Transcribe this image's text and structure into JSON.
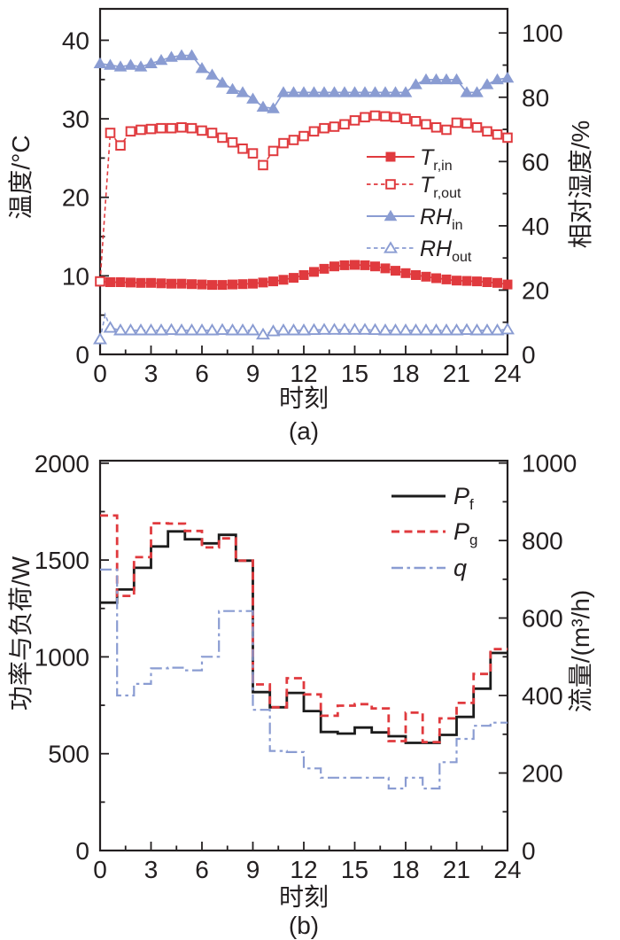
{
  "figure": {
    "background": "#ffffff",
    "ink_color": "#231f20",
    "red": "#e03a3e",
    "blue": "#8a9cd2",
    "black_series": "#1b1b1b"
  },
  "chart_data": [
    {
      "id": "a",
      "caption": "(a)",
      "type": "line",
      "x_axis": {
        "label": "时刻",
        "min": 0,
        "max": 24,
        "major_ticks": [
          0,
          3,
          6,
          9,
          12,
          15,
          18,
          21,
          24
        ]
      },
      "y_left": {
        "label": "温度/°C",
        "min": 0,
        "max": 44,
        "major_ticks": [
          0,
          10,
          20,
          30,
          40
        ]
      },
      "y_right": {
        "label": "相对湿度/%",
        "min": 0,
        "max": 107.5,
        "major_ticks": [
          0,
          20,
          40,
          60,
          80,
          100
        ]
      },
      "legend_position": "center-right-inside",
      "series": [
        {
          "name": "T-r-in",
          "label_main": "T",
          "label_sub": "r,in",
          "color": "#e03a3e",
          "axis": "left",
          "line": "solid",
          "width": 1.7,
          "marker": "square",
          "step": false,
          "x0": 0,
          "dx": 0.6,
          "y": [
            9.3,
            9.2,
            9.2,
            9.15,
            9.1,
            9.1,
            9.05,
            9.0,
            9.0,
            8.95,
            8.9,
            8.85,
            8.85,
            8.9,
            8.95,
            9.0,
            9.15,
            9.3,
            9.5,
            9.75,
            10.1,
            10.5,
            10.9,
            11.2,
            11.35,
            11.4,
            11.35,
            11.2,
            10.95,
            10.65,
            10.35,
            10.1,
            9.9,
            9.7,
            9.55,
            9.4,
            9.35,
            9.3,
            9.2,
            9.1,
            8.9
          ]
        },
        {
          "name": "T-r-out",
          "label_main": "T",
          "label_sub": "r,out",
          "color": "#e03a3e",
          "axis": "left",
          "line": "dashed",
          "width": 1.6,
          "marker": "square-open",
          "step": false,
          "x0": 0,
          "dx": 0.6,
          "y": [
            9.3,
            28.2,
            26.6,
            28.4,
            28.6,
            28.7,
            28.8,
            28.8,
            28.9,
            28.8,
            28.5,
            28.2,
            27.6,
            27.0,
            26.2,
            25.6,
            24.1,
            25.9,
            26.9,
            27.3,
            27.8,
            28.4,
            28.8,
            29.0,
            29.3,
            29.8,
            30.2,
            30.4,
            30.3,
            30.2,
            30.0,
            29.7,
            29.3,
            28.9,
            28.6,
            29.5,
            29.4,
            28.9,
            28.4,
            28.0,
            27.6
          ]
        },
        {
          "name": "RH-in",
          "label_main": "RH",
          "label_sub": "in",
          "color": "#8a9cd2",
          "axis": "right",
          "line": "solid",
          "width": 1.7,
          "marker": "triangle",
          "step": false,
          "x0": 0,
          "dx": 0.6,
          "y": [
            90.5,
            90,
            89.5,
            90,
            89.5,
            90.5,
            91.5,
            92.5,
            93,
            93,
            89,
            87,
            84.5,
            82.5,
            81.5,
            79.5,
            77,
            76.5,
            81.5,
            81.5,
            81.5,
            81.5,
            81.5,
            81.5,
            81.5,
            81.5,
            81.5,
            81.5,
            81.5,
            81.5,
            81.5,
            84,
            85.5,
            85.5,
            85.5,
            85.5,
            81.5,
            81.5,
            84,
            85.5,
            86
          ]
        },
        {
          "name": "RH-out",
          "label_main": "RH",
          "label_sub": "out",
          "color": "#8a9cd2",
          "axis": "right",
          "line": "dashed",
          "width": 1.6,
          "marker": "triangle-open",
          "step": false,
          "x0": 0,
          "dx": 0.6,
          "y": [
            4.7,
            8.3,
            7.5,
            7.5,
            7.5,
            7.5,
            7.5,
            7.6,
            7.5,
            7.5,
            7.5,
            7.5,
            7.6,
            7.5,
            7.5,
            7.5,
            6.2,
            7.2,
            7.5,
            7.5,
            7.5,
            7.6,
            7.7,
            7.7,
            7.7,
            7.7,
            7.7,
            7.6,
            7.5,
            7.5,
            7.5,
            7.5,
            7.5,
            7.5,
            7.5,
            7.5,
            7.6,
            7.5,
            7.5,
            7.5,
            7.8
          ],
          "extra_line_vertices": [
            {
              "after_index": 0,
              "x": 0.3,
              "y": 12.4
            }
          ]
        }
      ]
    },
    {
      "id": "b",
      "caption": "(b)",
      "type": "step",
      "x_axis": {
        "label": "时刻",
        "min": 0,
        "max": 24,
        "major_ticks": [
          0,
          3,
          6,
          9,
          12,
          15,
          18,
          21,
          24
        ]
      },
      "y_left": {
        "label": "功率与负荷/W",
        "min": 0,
        "max": 2013,
        "major_ticks": [
          0,
          500,
          1000,
          1500,
          2000
        ]
      },
      "y_right": {
        "label": "流量/(m³/h)",
        "min": 0,
        "max": 1006,
        "major_ticks": [
          0,
          200,
          400,
          600,
          800,
          1000
        ]
      },
      "legend_position": "top-right-inside",
      "series": [
        {
          "name": "P-f",
          "label_main": "P",
          "label_sub": "f",
          "color": "#1b1b1b",
          "axis": "left",
          "line": "solid",
          "width": 2.8,
          "marker": null,
          "step": true,
          "x0": 0,
          "dx": 1,
          "y": [
            1280,
            1348,
            1460,
            1570,
            1648,
            1607,
            1586,
            1630,
            1497,
            818,
            740,
            814,
            720,
            612,
            604,
            635,
            610,
            590,
            556,
            556,
            597,
            690,
            836,
            1020
          ]
        },
        {
          "name": "P-g",
          "label_main": "P",
          "label_sub": "g",
          "color": "#e03a3e",
          "axis": "left",
          "line": "dashed",
          "width": 2.8,
          "marker": null,
          "step": true,
          "x0": 0,
          "dx": 1,
          "y": [
            1730,
            1315,
            1515,
            1690,
            1688,
            1650,
            1565,
            1612,
            1497,
            858,
            740,
            890,
            806,
            696,
            748,
            756,
            734,
            565,
            712,
            560,
            682,
            762,
            912,
            1040
          ]
        },
        {
          "name": "q",
          "label_main": "q",
          "label_sub": "",
          "color": "#8a9cd2",
          "axis": "right",
          "line": "dashdot",
          "width": 2.2,
          "marker": null,
          "step": true,
          "x0": 0,
          "dx": 1,
          "y": [
            725,
            400,
            430,
            470,
            472,
            465,
            500,
            618,
            618,
            363,
            257,
            254,
            212,
            188,
            188,
            188,
            188,
            160,
            188,
            160,
            228,
            288,
            322,
            330
          ]
        }
      ]
    }
  ]
}
